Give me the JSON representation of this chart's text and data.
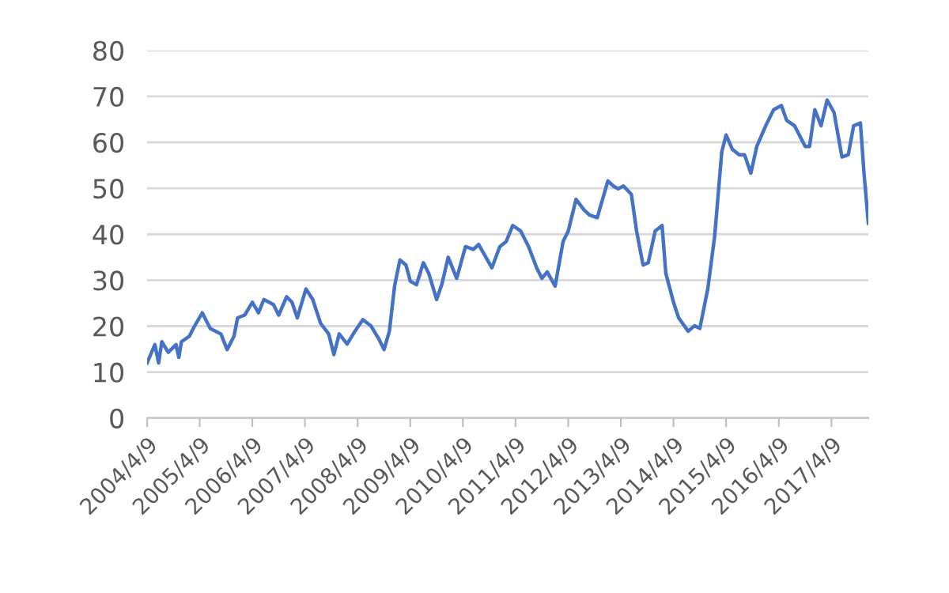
{
  "chart_data": {
    "type": "line",
    "grid": "y",
    "legend": false,
    "marker": "none",
    "line_style": "solid",
    "xlim": [
      "2004-04-09",
      "2017-12-21"
    ],
    "ylim": [
      0,
      80
    ],
    "yticks": [
      0,
      10,
      20,
      30,
      40,
      50,
      60,
      70,
      80
    ],
    "xticks": [
      {
        "value": "2004-04-09",
        "label": "2004/4/9"
      },
      {
        "value": "2005-04-09",
        "label": "2005/4/9"
      },
      {
        "value": "2006-04-09",
        "label": "2006/4/9"
      },
      {
        "value": "2007-04-09",
        "label": "2007/4/9"
      },
      {
        "value": "2008-04-09",
        "label": "2008/4/9"
      },
      {
        "value": "2009-04-09",
        "label": "2009/4/9"
      },
      {
        "value": "2010-04-09",
        "label": "2010/4/9"
      },
      {
        "value": "2011-04-09",
        "label": "2011/4/9"
      },
      {
        "value": "2012-04-09",
        "label": "2012/4/9"
      },
      {
        "value": "2013-04-09",
        "label": "2013/4/9"
      },
      {
        "value": "2014-04-09",
        "label": "2014/4/9"
      },
      {
        "value": "2015-04-09",
        "label": "2015/4/9"
      },
      {
        "value": "2016-04-09",
        "label": "2016/4/9"
      },
      {
        "value": "2017-04-09",
        "label": "2017/4/9"
      }
    ],
    "x": [
      "2004-04-09",
      "2004-06-02",
      "2004-06-28",
      "2004-07-20",
      "2004-09-03",
      "2004-10-27",
      "2004-11-15",
      "2004-12-03",
      "2005-01-27",
      "2005-03-04",
      "2005-04-27",
      "2005-06-21",
      "2005-09-03",
      "2005-10-16",
      "2005-12-03",
      "2005-12-28",
      "2006-02-15",
      "2006-04-09",
      "2006-05-22",
      "2006-06-28",
      "2006-09-03",
      "2006-10-09",
      "2006-12-03",
      "2007-01-09",
      "2007-02-15",
      "2007-04-16",
      "2007-06-02",
      "2007-07-27",
      "2007-09-21",
      "2007-10-27",
      "2007-12-03",
      "2008-01-27",
      "2008-03-21",
      "2008-05-15",
      "2008-07-09",
      "2008-09-03",
      "2008-10-09",
      "2008-11-15",
      "2008-12-21",
      "2009-01-27",
      "2009-03-10",
      "2009-04-09",
      "2009-05-22",
      "2009-07-09",
      "2009-08-15",
      "2009-10-09",
      "2009-11-15",
      "2009-12-28",
      "2010-02-25",
      "2010-04-27",
      "2010-06-21",
      "2010-07-27",
      "2010-10-27",
      "2010-12-21",
      "2011-02-03",
      "2011-03-21",
      "2011-05-15",
      "2011-07-09",
      "2011-09-03",
      "2011-10-09",
      "2011-11-15",
      "2012-01-09",
      "2012-03-04",
      "2012-04-09",
      "2012-06-02",
      "2012-07-27",
      "2012-09-03",
      "2012-10-27",
      "2012-12-03",
      "2013-01-09",
      "2013-02-15",
      "2013-03-21",
      "2013-04-27",
      "2013-06-21",
      "2013-07-27",
      "2013-09-10",
      "2013-10-16",
      "2013-12-03",
      "2014-01-20",
      "2014-02-15",
      "2014-04-09",
      "2014-05-15",
      "2014-07-20",
      "2014-09-03",
      "2014-10-09",
      "2014-12-03",
      "2015-01-20",
      "2015-03-10",
      "2015-04-09",
      "2015-05-22",
      "2015-07-09",
      "2015-08-15",
      "2015-09-28",
      "2015-11-08",
      "2016-01-09",
      "2016-03-04",
      "2016-04-27",
      "2016-06-02",
      "2016-07-27",
      "2016-10-09",
      "2016-11-08",
      "2016-12-15",
      "2017-01-27",
      "2017-03-10",
      "2017-04-27",
      "2017-06-21",
      "2017-08-04",
      "2017-09-10",
      "2017-10-27",
      "2017-11-21",
      "2017-12-21"
    ],
    "series": [
      {
        "color": "#4472c4",
        "values": [
          12.0,
          16.0,
          12.0,
          16.6,
          14.3,
          16.0,
          13.2,
          16.6,
          17.8,
          20.0,
          22.9,
          19.5,
          18.3,
          14.9,
          17.8,
          21.8,
          22.4,
          25.2,
          22.9,
          25.8,
          24.7,
          22.4,
          26.4,
          25.2,
          21.8,
          28.1,
          25.8,
          20.6,
          18.3,
          13.8,
          18.3,
          16.1,
          18.9,
          21.4,
          20.1,
          17.2,
          14.9,
          18.9,
          28.7,
          34.4,
          33.3,
          29.8,
          29.0,
          33.8,
          31.5,
          25.8,
          29.2,
          35.0,
          30.4,
          37.3,
          36.7,
          37.8,
          32.7,
          37.3,
          38.4,
          41.9,
          40.7,
          37.3,
          32.7,
          30.4,
          31.8,
          28.7,
          38.4,
          40.7,
          47.6,
          45.3,
          44.2,
          43.6,
          47.6,
          51.6,
          50.5,
          49.9,
          50.5,
          48.7,
          40.7,
          33.3,
          33.8,
          40.7,
          41.9,
          31.5,
          25.2,
          21.8,
          18.9,
          20.1,
          19.5,
          28.1,
          39.6,
          57.9,
          61.6,
          58.5,
          57.3,
          57.3,
          53.3,
          59.1,
          63.6,
          67.1,
          68.0,
          64.8,
          63.6,
          59.1,
          59.1,
          67.1,
          63.6,
          69.2,
          66.5,
          56.8,
          57.3,
          63.6,
          64.2,
          53.3,
          42.4
        ]
      }
    ]
  }
}
